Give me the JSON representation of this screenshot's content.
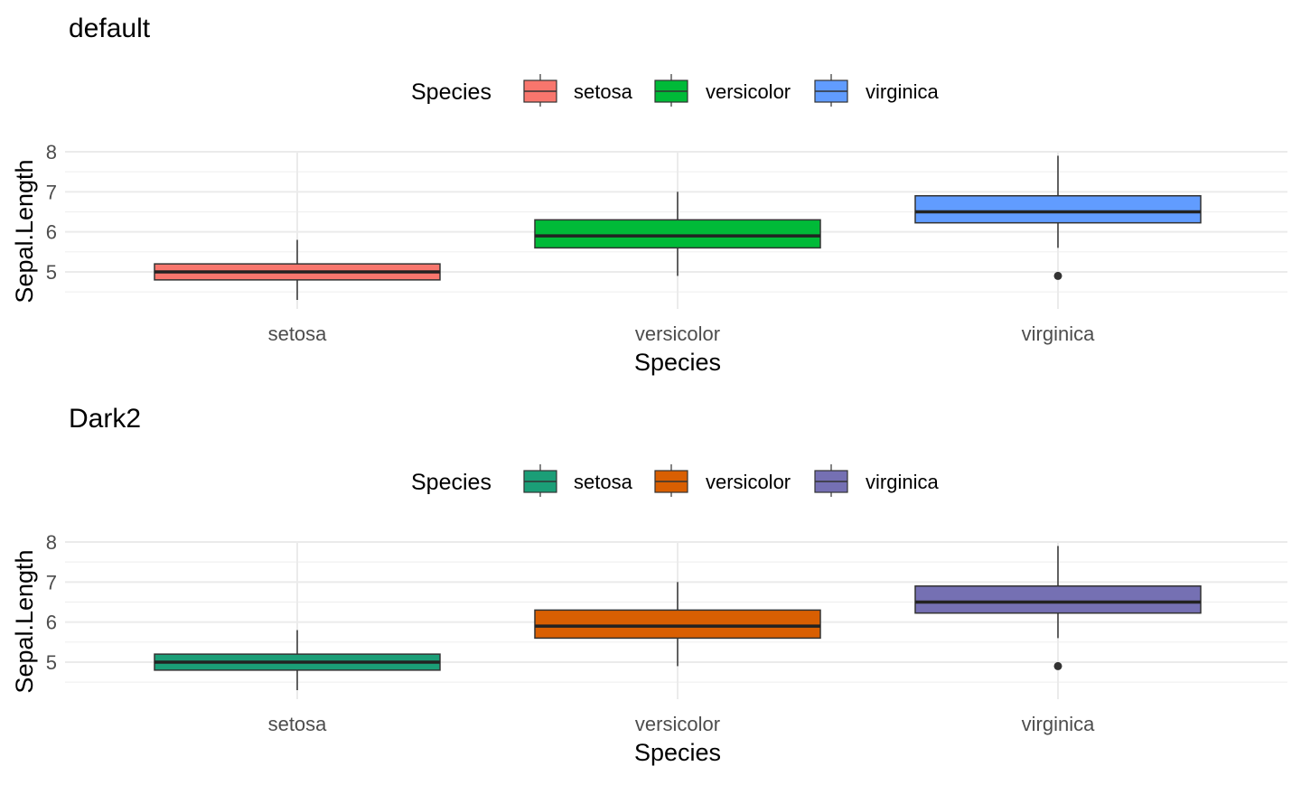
{
  "chart_data": [
    {
      "type": "box",
      "title": "default",
      "xlabel": "Species",
      "ylabel": "Sepal.Length",
      "legend": {
        "title": "Species",
        "position": "top"
      },
      "categories": [
        "setosa",
        "versicolor",
        "virginica"
      ],
      "colors": [
        "#F8766D",
        "#00BA38",
        "#619CFF"
      ],
      "yticks": [
        5,
        6,
        7,
        8
      ],
      "ylim": [
        4.3,
        8.0
      ],
      "grid": true,
      "boxes": [
        {
          "category": "setosa",
          "whisker_low": 4.3,
          "q1": 4.8,
          "median": 5.0,
          "q3": 5.2,
          "whisker_high": 5.8,
          "outliers": []
        },
        {
          "category": "versicolor",
          "whisker_low": 4.9,
          "q1": 5.6,
          "median": 5.9,
          "q3": 6.3,
          "whisker_high": 7.0,
          "outliers": []
        },
        {
          "category": "virginica",
          "whisker_low": 5.6,
          "q1": 6.225,
          "median": 6.5,
          "q3": 6.9,
          "whisker_high": 7.9,
          "outliers": [
            4.9
          ]
        }
      ]
    },
    {
      "type": "box",
      "title": "Dark2",
      "xlabel": "Species",
      "ylabel": "Sepal.Length",
      "legend": {
        "title": "Species",
        "position": "top"
      },
      "categories": [
        "setosa",
        "versicolor",
        "virginica"
      ],
      "colors": [
        "#1B9E77",
        "#D95F02",
        "#7570B3"
      ],
      "yticks": [
        5,
        6,
        7,
        8
      ],
      "ylim": [
        4.3,
        8.0
      ],
      "grid": true,
      "boxes": [
        {
          "category": "setosa",
          "whisker_low": 4.3,
          "q1": 4.8,
          "median": 5.0,
          "q3": 5.2,
          "whisker_high": 5.8,
          "outliers": []
        },
        {
          "category": "versicolor",
          "whisker_low": 4.9,
          "q1": 5.6,
          "median": 5.9,
          "q3": 6.3,
          "whisker_high": 7.0,
          "outliers": []
        },
        {
          "category": "virginica",
          "whisker_low": 5.6,
          "q1": 6.225,
          "median": 6.5,
          "q3": 6.9,
          "whisker_high": 7.9,
          "outliers": [
            4.9
          ]
        }
      ]
    }
  ]
}
